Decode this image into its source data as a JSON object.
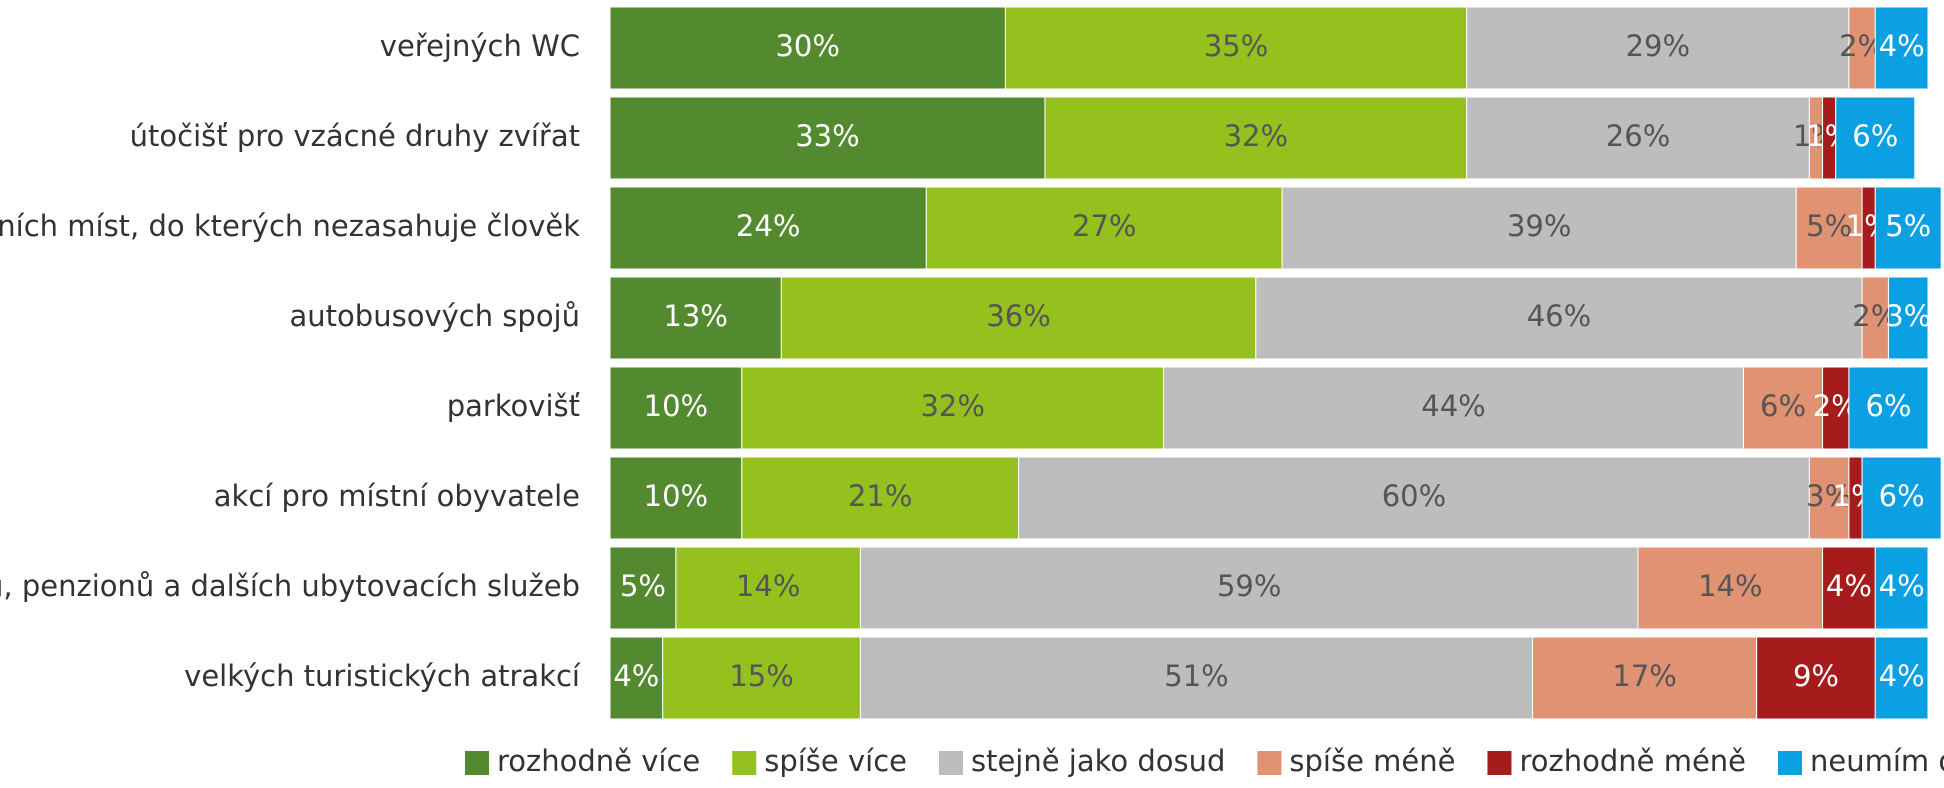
{
  "chart_data": {
    "type": "stacked-bar-horizontal",
    "categories": [
      "veřejných WC",
      "útočišť pro vzácné druhy zvířat",
      "přírodních míst, do kterých nezasahuje člověk",
      "autobusových spojů",
      "parkovišť",
      "akcí pro místní obyvatele",
      "hotelů, penzionů a dalších ubytovacích služeb",
      "velkých turistických atrakcí"
    ],
    "xlim": [
      0,
      100
    ],
    "series": [
      {
        "name": "rozhodně více",
        "color": "#548a2f",
        "values": [
          30,
          33,
          24,
          13,
          10,
          10,
          5,
          4
        ],
        "value_labels": [
          "30%",
          "33%",
          "24%",
          "13%",
          "10%",
          "10%",
          "5%",
          "4%"
        ]
      },
      {
        "name": "spíše více",
        "color": "#95c11f",
        "values": [
          35,
          32,
          27,
          36,
          32,
          21,
          14,
          15
        ],
        "value_labels": [
          "35%",
          "32%",
          "27%",
          "36%",
          "32%",
          "21%",
          "14%",
          "15%"
        ]
      },
      {
        "name": "stejně jako dosud",
        "color": "#bdbdbd",
        "values": [
          29,
          26,
          39,
          46,
          44,
          60,
          59,
          51
        ],
        "value_labels": [
          "29%",
          "26%",
          "39%",
          "46%",
          "44%",
          "60%",
          "59%",
          "51%"
        ]
      },
      {
        "name": "spíše méně",
        "color": "#e09273",
        "values": [
          2,
          1,
          5,
          2,
          6,
          3,
          14,
          17
        ],
        "value_labels": [
          "2%",
          "1%",
          "5%",
          "2%",
          "6%",
          "3%",
          "14%",
          "17%"
        ]
      },
      {
        "name": "rozhodně méně",
        "color": "#a61c1c",
        "values": [
          null,
          1,
          1,
          null,
          2,
          1,
          4,
          9
        ],
        "value_labels": [
          null,
          "1%",
          "1%",
          null,
          "2%",
          "1%",
          "4%",
          "9%"
        ]
      },
      {
        "name": "neumím odpovědět",
        "color": "#0aa0e2",
        "values": [
          4,
          6,
          5,
          3,
          6,
          6,
          4,
          4
        ],
        "value_labels": [
          "4%",
          "6%",
          "5%",
          "3%",
          "6%",
          "6%",
          "4%",
          "4%"
        ]
      }
    ]
  }
}
